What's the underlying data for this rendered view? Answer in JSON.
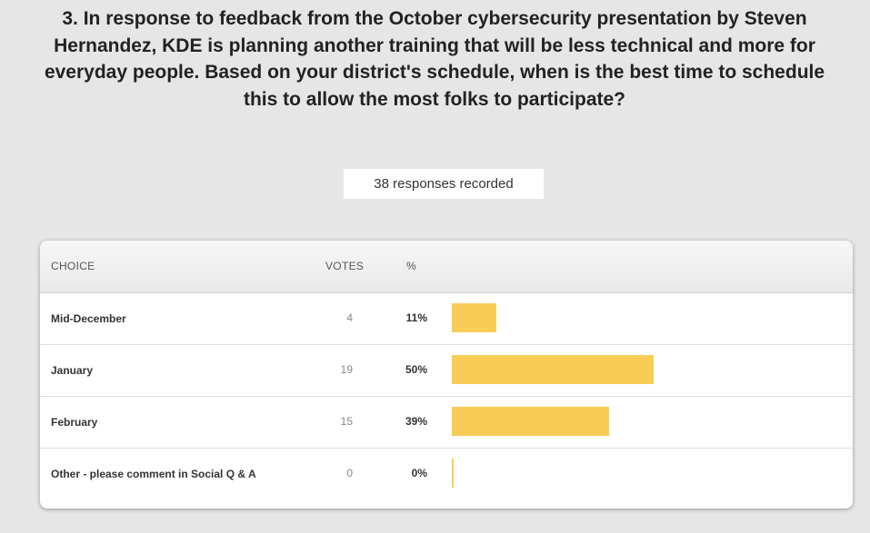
{
  "chart_data": {
    "type": "bar",
    "title": "3. In response to feedback from the October cybersecurity presentation by Steven Hernandez, KDE is planning another training that will be less technical and more for everyday people. Based on your district's schedule, when is the best time to schedule this to allow the most folks to participate?",
    "subtitle": "38 responses recorded",
    "columns": [
      "CHOICE",
      "VOTES",
      "%"
    ],
    "categories": [
      "Mid-December",
      "January",
      "February",
      "Other - please comment in Social Q & A"
    ],
    "votes": [
      4,
      19,
      15,
      0
    ],
    "values": [
      11,
      50,
      39,
      0
    ],
    "value_labels": [
      "11%",
      "50%",
      "39%",
      "0%"
    ],
    "color": "#f7cd55",
    "xlim": [
      0,
      100
    ]
  }
}
